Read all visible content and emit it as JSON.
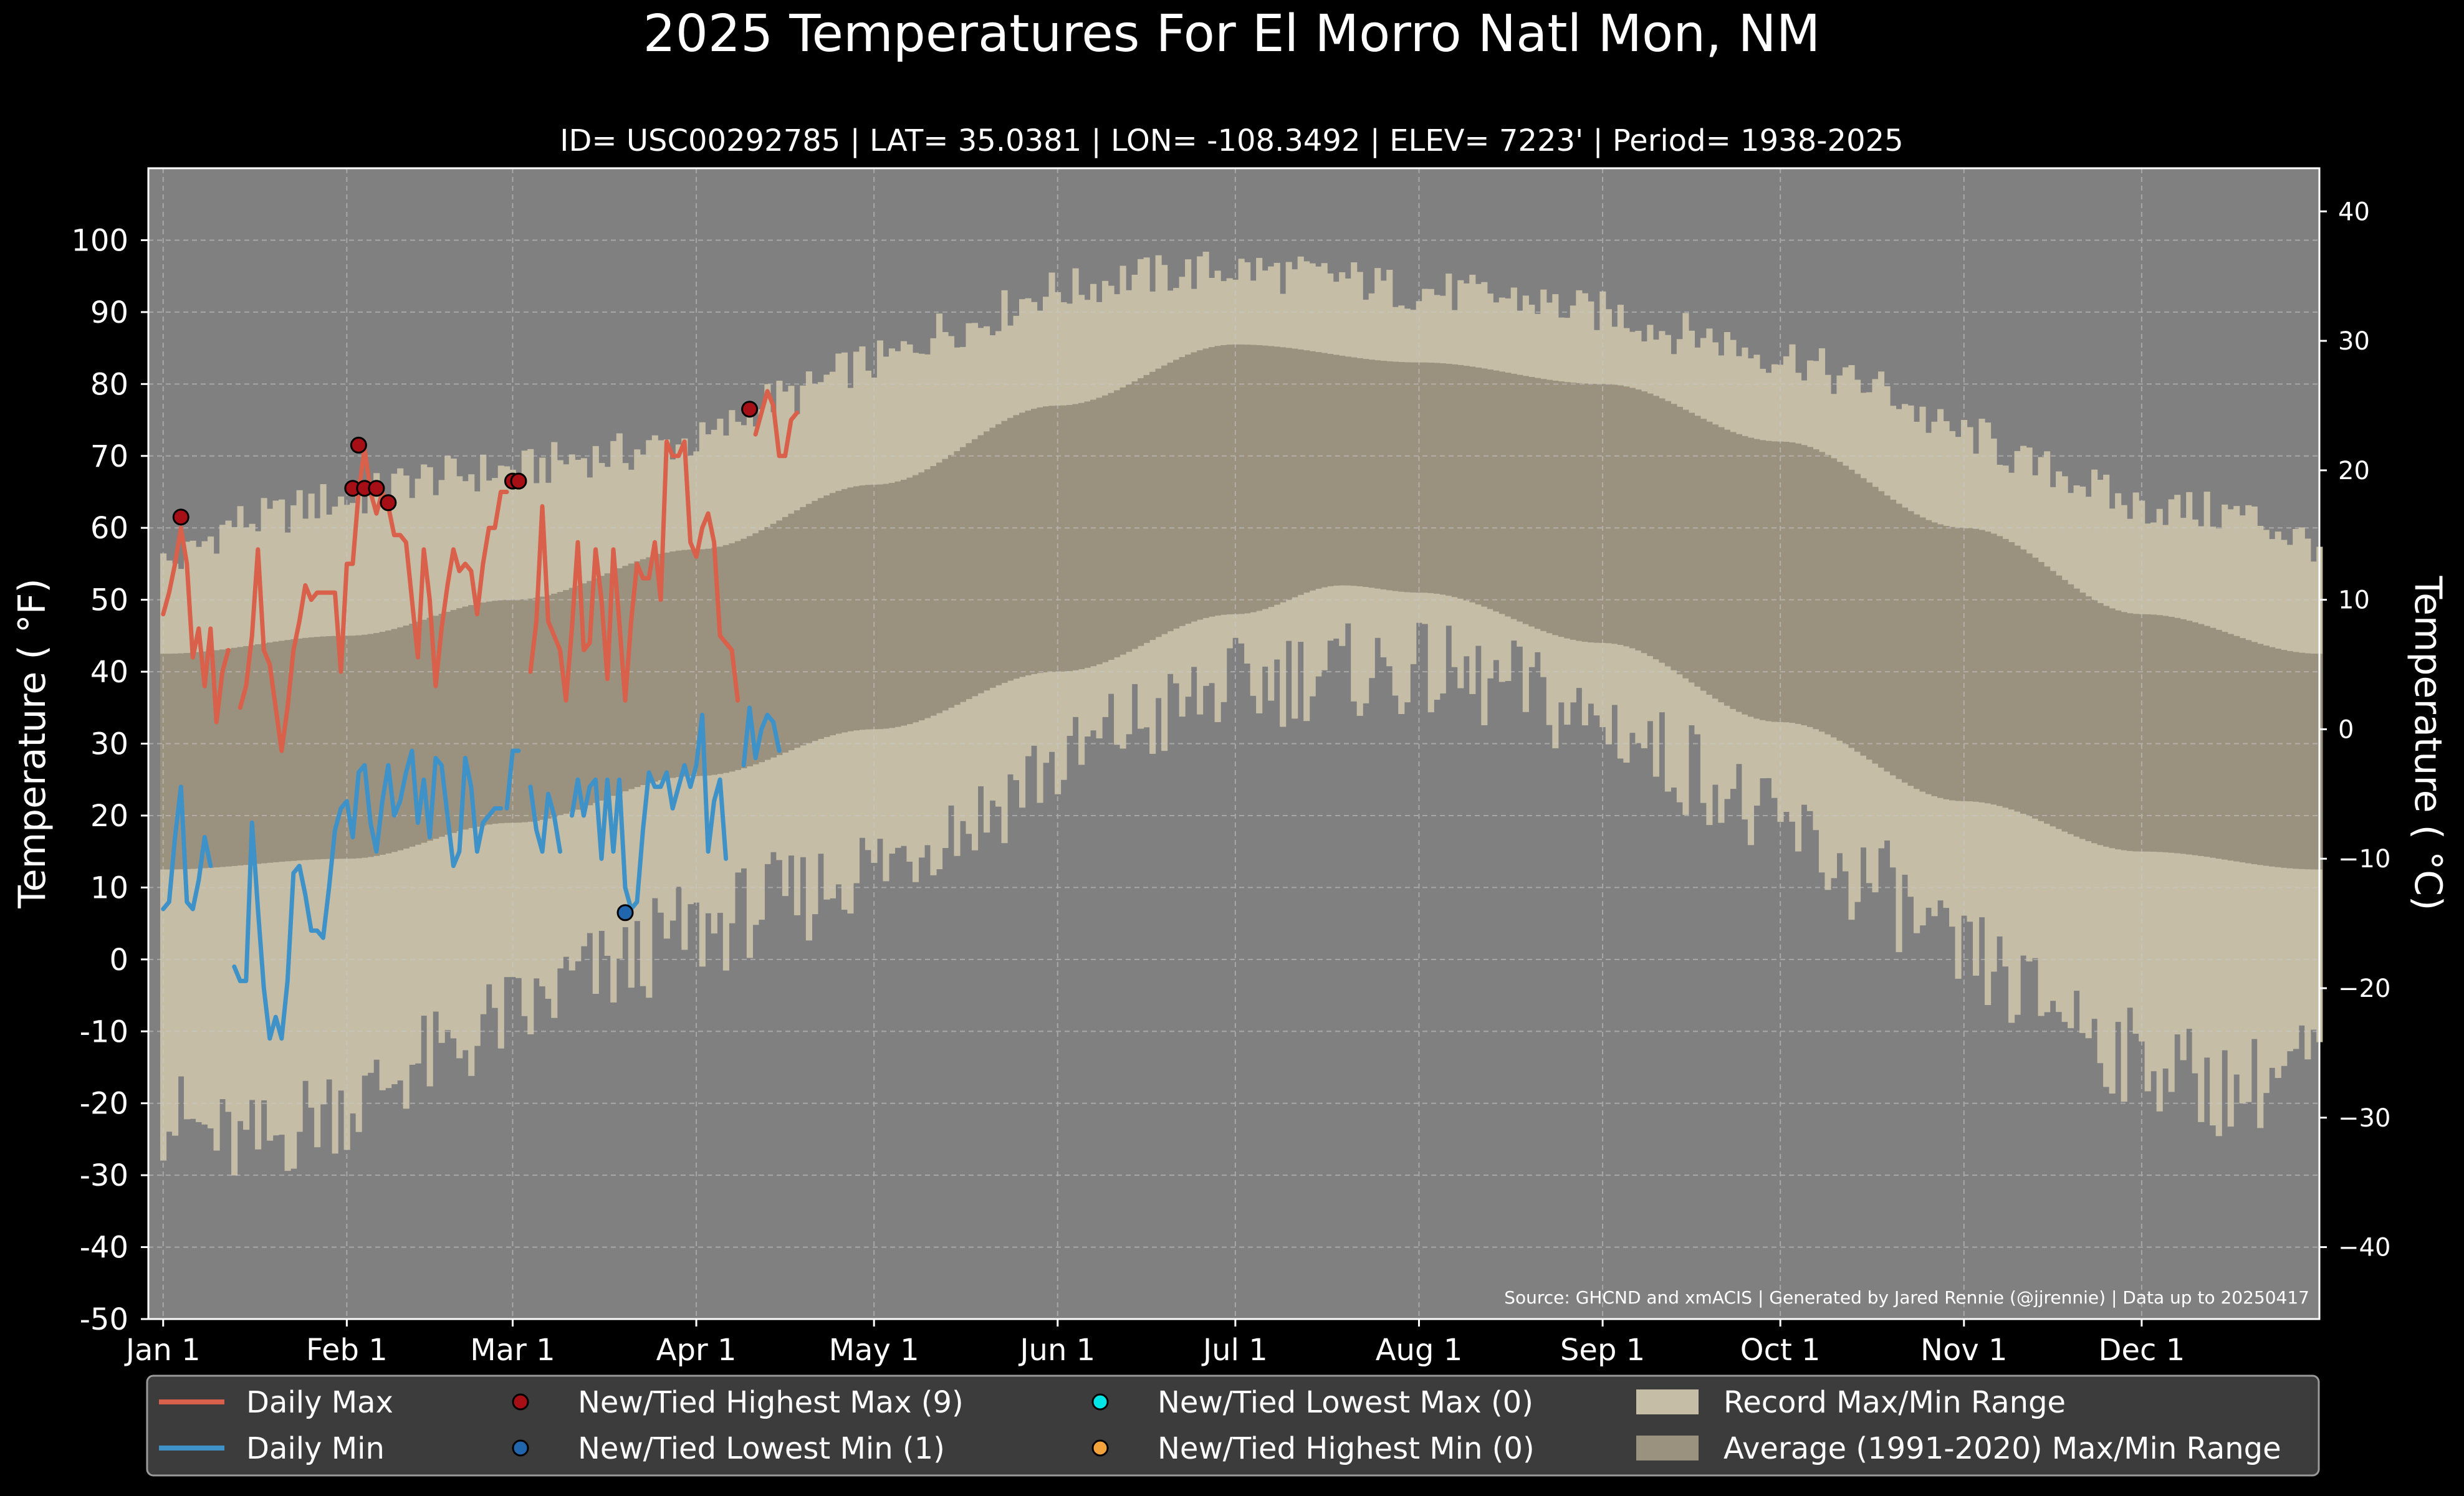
{
  "chart_data": {
    "type": "line",
    "title": "2025 Temperatures For El Morro Natl Mon, NM",
    "subtitle": "ID= USC00292785 | LAT= 35.0381 | LON= -108.3492 | ELEV= 7223' | Period= 1938-2025",
    "ylabel": "Temperature ( °F)",
    "ylabel_right": "Temperature ( °C)",
    "source": "Source: GHCND and xmACIS | Generated by Jared Rennie (@jjrennie) | Data up to 20250417",
    "ylim": [
      -50,
      110
    ],
    "xlim_day": [
      -1.5,
      365
    ],
    "grid": true,
    "legend_position": "bottom",
    "y_ticks": [
      -50,
      -40,
      -30,
      -20,
      -10,
      0,
      10,
      20,
      30,
      40,
      50,
      60,
      70,
      80,
      90,
      100
    ],
    "y_tick_labels": [
      "-50",
      "-40",
      "-30",
      "-20",
      "-10",
      "0",
      "10",
      "20",
      "30",
      "40",
      "50",
      "60",
      "70",
      "80",
      "90",
      "100"
    ],
    "y2_ticks": [
      -40,
      -30,
      -20,
      -10,
      0,
      10,
      20,
      30,
      40
    ],
    "y2_tick_labels": [
      "−40",
      "−30",
      "−20",
      "−10",
      "0",
      "10",
      "20",
      "30",
      "40"
    ],
    "x_tick_days": [
      1,
      32,
      60,
      91,
      121,
      152,
      182,
      213,
      244,
      274,
      305,
      335
    ],
    "x_tick_labels": [
      "Jan 1",
      "Feb 1",
      "Mar 1",
      "Apr 1",
      "May 1",
      "Jun 1",
      "Jul 1",
      "Aug 1",
      "Sep 1",
      "Oct 1",
      "Nov 1",
      "Dec 1"
    ],
    "colors": {
      "plot_bg": "#808080",
      "record_band": "#c5bda6",
      "normal_band": "#9b917f",
      "daily_max": "#d9604a",
      "daily_min": "#3f92c8",
      "new_high_max": "#a50f15",
      "new_low_min": "#2166ac",
      "new_low_max": "#00e5e5",
      "new_high_min": "#f4a23c",
      "legend_bg": "#3c3c3c"
    },
    "legend": [
      {
        "label": "Daily Max",
        "kind": "line",
        "color": "#d9604a"
      },
      {
        "label": "Daily Min",
        "kind": "line",
        "color": "#3f92c8"
      },
      {
        "label": "New/Tied Highest Max (9)",
        "kind": "dot",
        "color": "#a50f15"
      },
      {
        "label": "New/Tied Lowest Min (1)",
        "kind": "dot",
        "color": "#2166ac"
      },
      {
        "label": "New/Tied Lowest Max (0)",
        "kind": "dot",
        "color": "#00e5e5"
      },
      {
        "label": "New/Tied Highest Min (0)",
        "kind": "dot",
        "color": "#f4a23c"
      },
      {
        "label": "Record Max/Min Range",
        "kind": "patch",
        "color": "#c5bda6"
      },
      {
        "label": "Average (1991-2020) Max/Min Range",
        "kind": "patch",
        "color": "#9b917f"
      }
    ],
    "record_max_anchors": [
      [
        1,
        55
      ],
      [
        15,
        61
      ],
      [
        32,
        64
      ],
      [
        46,
        67
      ],
      [
        60,
        68
      ],
      [
        74,
        70
      ],
      [
        91,
        72
      ],
      [
        105,
        78
      ],
      [
        121,
        83
      ],
      [
        135,
        88
      ],
      [
        152,
        93
      ],
      [
        166,
        95
      ],
      [
        182,
        96
      ],
      [
        196,
        95
      ],
      [
        213,
        93
      ],
      [
        227,
        92
      ],
      [
        244,
        90
      ],
      [
        258,
        87
      ],
      [
        274,
        84
      ],
      [
        288,
        80
      ],
      [
        305,
        73
      ],
      [
        319,
        68
      ],
      [
        335,
        63
      ],
      [
        350,
        62
      ],
      [
        365,
        58
      ]
    ],
    "record_min_anchors": [
      [
        1,
        -22
      ],
      [
        15,
        -26
      ],
      [
        32,
        -20
      ],
      [
        46,
        -14
      ],
      [
        60,
        -8
      ],
      [
        74,
        -2
      ],
      [
        91,
        4
      ],
      [
        105,
        8
      ],
      [
        121,
        13
      ],
      [
        135,
        19
      ],
      [
        152,
        27
      ],
      [
        166,
        33
      ],
      [
        182,
        38
      ],
      [
        196,
        40
      ],
      [
        213,
        40
      ],
      [
        227,
        38
      ],
      [
        244,
        33
      ],
      [
        258,
        27
      ],
      [
        274,
        18
      ],
      [
        288,
        11
      ],
      [
        305,
        0
      ],
      [
        319,
        -6
      ],
      [
        335,
        -14
      ],
      [
        350,
        -18
      ],
      [
        365,
        -14
      ]
    ],
    "normal_max_anchors": [
      [
        1,
        42.5
      ],
      [
        32,
        45
      ],
      [
        60,
        50
      ],
      [
        91,
        57
      ],
      [
        121,
        66
      ],
      [
        152,
        77
      ],
      [
        182,
        85.5
      ],
      [
        213,
        83
      ],
      [
        244,
        80
      ],
      [
        274,
        72
      ],
      [
        305,
        60
      ],
      [
        335,
        48
      ],
      [
        365,
        42.5
      ]
    ],
    "normal_min_anchors": [
      [
        1,
        12.5
      ],
      [
        32,
        14
      ],
      [
        60,
        19
      ],
      [
        91,
        25.5
      ],
      [
        121,
        32
      ],
      [
        152,
        40
      ],
      [
        182,
        48
      ],
      [
        200,
        52
      ],
      [
        213,
        51
      ],
      [
        244,
        44
      ],
      [
        274,
        33
      ],
      [
        305,
        22
      ],
      [
        335,
        15
      ],
      [
        365,
        12.5
      ]
    ],
    "daily_max_segments": [
      [
        [
          1,
          48
        ],
        [
          2,
          51
        ],
        [
          3,
          55
        ],
        [
          4,
          60
        ],
        [
          5,
          55
        ],
        [
          6,
          42
        ],
        [
          7,
          46
        ],
        [
          8,
          38
        ],
        [
          9,
          46
        ],
        [
          10,
          33
        ],
        [
          11,
          40
        ],
        [
          12,
          43
        ]
      ],
      [
        [
          14,
          35
        ],
        [
          15,
          38
        ],
        [
          16,
          45
        ],
        [
          17,
          57
        ],
        [
          18,
          43
        ],
        [
          19,
          41
        ],
        [
          20,
          35
        ],
        [
          21,
          29
        ],
        [
          22,
          35
        ],
        [
          23,
          43
        ],
        [
          24,
          47
        ],
        [
          25,
          52
        ],
        [
          26,
          50
        ],
        [
          27,
          51
        ],
        [
          28,
          51
        ],
        [
          29,
          51
        ],
        [
          30,
          51
        ],
        [
          31,
          40
        ],
        [
          32,
          55
        ],
        [
          33,
          55
        ],
        [
          34,
          65
        ],
        [
          35,
          71
        ],
        [
          36,
          65
        ],
        [
          37,
          62
        ],
        [
          38,
          65
        ],
        [
          39,
          63
        ],
        [
          40,
          59
        ],
        [
          41,
          59
        ],
        [
          42,
          58
        ],
        [
          43,
          50
        ],
        [
          44,
          42
        ],
        [
          45,
          57
        ],
        [
          46,
          50
        ],
        [
          47,
          38
        ],
        [
          48,
          46
        ],
        [
          49,
          52
        ],
        [
          50,
          57
        ],
        [
          51,
          54
        ],
        [
          52,
          55
        ],
        [
          53,
          54
        ],
        [
          54,
          48
        ],
        [
          55,
          55
        ],
        [
          56,
          60
        ],
        [
          57,
          60
        ],
        [
          58,
          65
        ],
        [
          59,
          65
        ]
      ],
      [
        [
          60,
          66
        ],
        [
          61,
          66
        ]
      ],
      [
        [
          63,
          40
        ],
        [
          64,
          47
        ],
        [
          65,
          63
        ],
        [
          66,
          47
        ],
        [
          67,
          45
        ],
        [
          68,
          43
        ],
        [
          69,
          36
        ],
        [
          70,
          46
        ],
        [
          71,
          58
        ],
        [
          72,
          43
        ],
        [
          73,
          44
        ],
        [
          74,
          57
        ],
        [
          75,
          50
        ],
        [
          76,
          39
        ],
        [
          77,
          57
        ],
        [
          78,
          47
        ],
        [
          79,
          36
        ],
        [
          80,
          47
        ],
        [
          81,
          55
        ],
        [
          82,
          53
        ],
        [
          83,
          53
        ],
        [
          84,
          58
        ],
        [
          85,
          50
        ],
        [
          86,
          72
        ],
        [
          87,
          70
        ],
        [
          88,
          70
        ],
        [
          89,
          72
        ],
        [
          90,
          58
        ],
        [
          91,
          56
        ],
        [
          92,
          60
        ],
        [
          93,
          62
        ],
        [
          94,
          58
        ],
        [
          95,
          45
        ],
        [
          96,
          44
        ],
        [
          97,
          43
        ],
        [
          98,
          36
        ]
      ],
      [
        [
          101,
          73
        ],
        [
          102,
          76
        ],
        [
          103,
          79
        ],
        [
          104,
          77
        ],
        [
          105,
          70
        ],
        [
          106,
          70
        ],
        [
          107,
          75
        ],
        [
          108,
          76
        ]
      ]
    ],
    "daily_min_segments": [
      [
        [
          1,
          7
        ],
        [
          2,
          8
        ],
        [
          3,
          17
        ],
        [
          4,
          24
        ],
        [
          5,
          8
        ],
        [
          6,
          7
        ],
        [
          7,
          11
        ],
        [
          8,
          17
        ],
        [
          9,
          13
        ]
      ],
      [
        [
          13,
          -1
        ],
        [
          14,
          -3
        ],
        [
          15,
          -3
        ],
        [
          16,
          19
        ],
        [
          17,
          7
        ],
        [
          18,
          -4
        ],
        [
          19,
          -11
        ],
        [
          20,
          -8
        ],
        [
          21,
          -11
        ],
        [
          22,
          -3
        ],
        [
          23,
          12
        ],
        [
          24,
          13
        ],
        [
          25,
          9
        ],
        [
          26,
          4
        ],
        [
          27,
          4
        ],
        [
          28,
          3
        ],
        [
          29,
          10
        ],
        [
          30,
          18
        ],
        [
          31,
          21
        ],
        [
          32,
          22
        ],
        [
          33,
          17
        ],
        [
          34,
          26
        ],
        [
          35,
          27
        ],
        [
          36,
          19
        ],
        [
          37,
          15
        ],
        [
          38,
          22
        ],
        [
          39,
          27
        ],
        [
          40,
          20
        ],
        [
          41,
          22
        ],
        [
          42,
          26
        ],
        [
          43,
          29
        ],
        [
          44,
          19
        ],
        [
          45,
          25
        ],
        [
          46,
          17
        ],
        [
          47,
          28
        ],
        [
          48,
          27
        ],
        [
          49,
          20
        ],
        [
          50,
          13
        ],
        [
          51,
          15
        ],
        [
          52,
          28
        ],
        [
          53,
          24
        ],
        [
          54,
          15
        ],
        [
          55,
          19
        ],
        [
          56,
          20
        ],
        [
          57,
          21
        ],
        [
          58,
          21
        ]
      ],
      [
        [
          59,
          21
        ],
        [
          60,
          29
        ],
        [
          61,
          29
        ]
      ],
      [
        [
          63,
          24
        ],
        [
          64,
          18
        ],
        [
          65,
          15
        ],
        [
          66,
          23
        ],
        [
          67,
          20
        ],
        [
          68,
          15
        ]
      ],
      [
        [
          70,
          20
        ],
        [
          71,
          25
        ],
        [
          72,
          20
        ],
        [
          73,
          24
        ],
        [
          74,
          25
        ],
        [
          75,
          14
        ],
        [
          76,
          25
        ],
        [
          77,
          15
        ],
        [
          78,
          25
        ],
        [
          79,
          10
        ],
        [
          80,
          7
        ],
        [
          81,
          8
        ],
        [
          82,
          18
        ],
        [
          83,
          26
        ],
        [
          84,
          24
        ],
        [
          85,
          24
        ],
        [
          86,
          26
        ],
        [
          87,
          21
        ],
        [
          88,
          24
        ],
        [
          89,
          27
        ],
        [
          90,
          24
        ],
        [
          91,
          27
        ],
        [
          92,
          34
        ],
        [
          93,
          15
        ],
        [
          94,
          22
        ],
        [
          95,
          25
        ],
        [
          96,
          14
        ]
      ],
      [
        [
          99,
          27
        ],
        [
          100,
          35
        ],
        [
          101,
          28
        ],
        [
          102,
          32
        ],
        [
          103,
          34
        ],
        [
          104,
          33
        ],
        [
          105,
          29
        ]
      ]
    ],
    "record_highest_max_points": [
      [
        4,
        61.5
      ],
      [
        33,
        65.5
      ],
      [
        34,
        71.5
      ],
      [
        35,
        65.5
      ],
      [
        37,
        65.5
      ],
      [
        39,
        63.5
      ],
      [
        60,
        66.5
      ],
      [
        61,
        66.5
      ],
      [
        100,
        76.5
      ]
    ],
    "record_lowest_min_points": [
      [
        79,
        6.5
      ]
    ]
  }
}
